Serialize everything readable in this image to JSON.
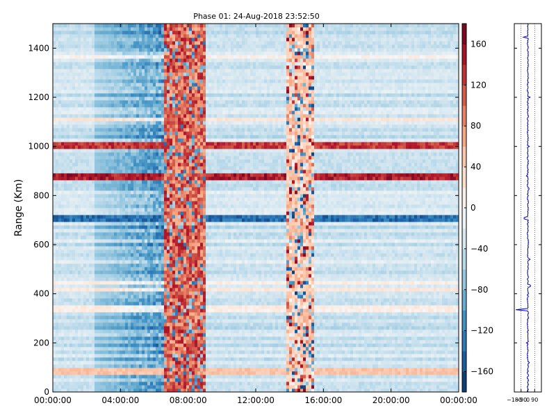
{
  "chart_data": [
    {
      "type": "heatmap",
      "title": "Phase 01: 24-Aug-2018 23:52:50",
      "ylabel": "Range (Km)",
      "xlabel": "",
      "x_tick_labels": [
        "00:00:00",
        "04:00:00",
        "08:00:00",
        "12:00:00",
        "16:00:00",
        "20:00:00",
        "00:00:00"
      ],
      "x_hours": [
        0,
        4,
        8,
        12,
        16,
        20,
        24
      ],
      "xlim_hours": [
        0,
        24
      ],
      "y_ticks": [
        0,
        200,
        400,
        600,
        800,
        1000,
        1200,
        1400
      ],
      "ylim": [
        0,
        1500
      ],
      "colormap": "RdBu_r",
      "zlim": [
        -180,
        180
      ],
      "colorbar_ticks": [
        160,
        120,
        80,
        40,
        0,
        -40,
        -80,
        -120,
        -160
      ],
      "colorbar_tick_labels": [
        "160",
        "120",
        "80",
        "40",
        "0",
        "−40",
        "−80",
        "−120",
        "−160"
      ],
      "high_phase_bands_hours": [
        [
          6.5,
          9.0
        ],
        [
          13.8,
          15.4
        ]
      ],
      "strong_range_lines": [
        {
          "range_km": 1000,
          "phase": 150
        },
        {
          "range_km": 876,
          "phase": 170
        },
        {
          "range_km": 706,
          "phase": -160
        },
        {
          "range_km": 90,
          "phase": 60
        }
      ]
    },
    {
      "type": "line",
      "title": "",
      "xlim": [
        -180,
        180
      ],
      "x_tick_labels": [
        "−180",
        "−90",
        "0",
        "90"
      ],
      "x_ticks": [
        -180,
        -90,
        0,
        90
      ],
      "ylim": [
        0,
        1500
      ],
      "grid": true,
      "line_color": "#0000cc",
      "spikes": [
        {
          "range_km": 1445,
          "value": -60
        },
        {
          "range_km": 1200,
          "value": 30
        },
        {
          "range_km": 1000,
          "value": 20
        },
        {
          "range_km": 880,
          "value": -20
        },
        {
          "range_km": 830,
          "value": 15
        },
        {
          "range_km": 706,
          "value": -50
        },
        {
          "range_km": 540,
          "value": 30
        },
        {
          "range_km": 430,
          "value": 35
        },
        {
          "range_km": 335,
          "value": -160
        },
        {
          "range_km": 200,
          "value": -20
        },
        {
          "range_km": 120,
          "value": 20
        }
      ]
    }
  ]
}
